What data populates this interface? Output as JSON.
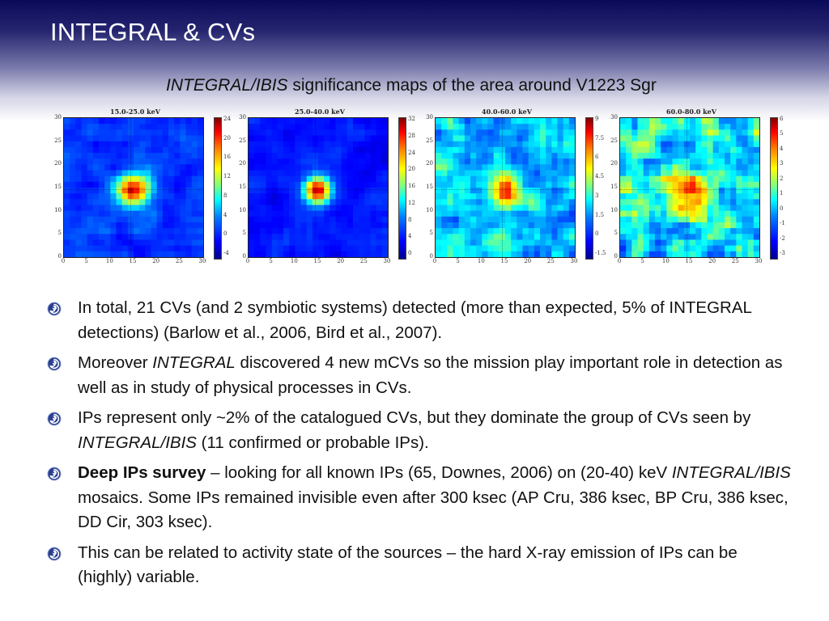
{
  "slide": {
    "title": "INTEGRAL & CVs",
    "subtitle_italic": "INTEGRAL/IBIS",
    "subtitle_rest": " significance maps of the area around V1223 Sgr"
  },
  "maps": [
    {
      "title": "15.0-25.0 keV",
      "colorbar_ticks": [
        "24",
        "20",
        "16",
        "12",
        "8",
        "4",
        "0",
        "-4"
      ],
      "hotspot": "strong",
      "background": "blue"
    },
    {
      "title": "25.0-40.0 keV",
      "colorbar_ticks": [
        "32",
        "28",
        "24",
        "20",
        "16",
        "12",
        "8",
        "4",
        "0"
      ],
      "hotspot": "strong",
      "background": "deep-blue"
    },
    {
      "title": "40.0-60.0 keV",
      "colorbar_ticks": [
        "9",
        "7.5",
        "6",
        "4.5",
        "3",
        "1.5",
        "0",
        "-1.5"
      ],
      "hotspot": "medium",
      "background": "cyan-noise"
    },
    {
      "title": "60.0-80.0 keV",
      "colorbar_ticks": [
        "6",
        "5",
        "4",
        "3",
        "2",
        "1",
        "0",
        "-1",
        "-2",
        "-3"
      ],
      "hotspot": "weak",
      "background": "mixed-noise"
    }
  ],
  "axis_ticks": {
    "x": [
      "0",
      "5",
      "10",
      "15",
      "20",
      "25",
      "30"
    ],
    "y": [
      "30",
      "25",
      "20",
      "15",
      "10",
      "5",
      "0"
    ]
  },
  "bullets": [
    {
      "parts": [
        {
          "t": "In total, 21 CVs (and 2 symbiotic systems) detected (more than expected, 5% of INTEGRAL detections) (Barlow et al., 2006, Bird et al., 2007).",
          "s": "n"
        }
      ]
    },
    {
      "parts": [
        {
          "t": "Moreover ",
          "s": "n"
        },
        {
          "t": "INTEGRAL",
          "s": "i"
        },
        {
          "t": " discovered 4 new mCVs so the mission play important role in detection as well as in study of physical processes in CVs.",
          "s": "n"
        }
      ]
    },
    {
      "parts": [
        {
          "t": "IPs  represent only ~2% of the catalogued CVs, but they dominate the group of CVs seen by ",
          "s": "n"
        },
        {
          "t": "INTEGRAL/IBIS",
          "s": "i"
        },
        {
          "t": " (11 confirmed or probable IPs).",
          "s": "n"
        }
      ]
    },
    {
      "parts": [
        {
          "t": "Deep IPs survey",
          "s": "b"
        },
        {
          "t": " – looking for all known IPs (65, Downes, 2006) on (20-40) keV ",
          "s": "n"
        },
        {
          "t": "INTEGRAL/IBIS",
          "s": "i"
        },
        {
          "t": " mosaics. Some IPs remained invisible even after 300 ksec (AP Cru, 386 ksec, BP Cru, 386 ksec, DD Cir, 303 ksec).",
          "s": "n"
        }
      ]
    },
    {
      "parts": [
        {
          "t": "This can be related to activity state of the sources – the hard X-ray emission of IPs can be (highly) variable.",
          "s": "n"
        }
      ]
    }
  ],
  "icons": {
    "bullet": "swirl-bullet-icon"
  }
}
